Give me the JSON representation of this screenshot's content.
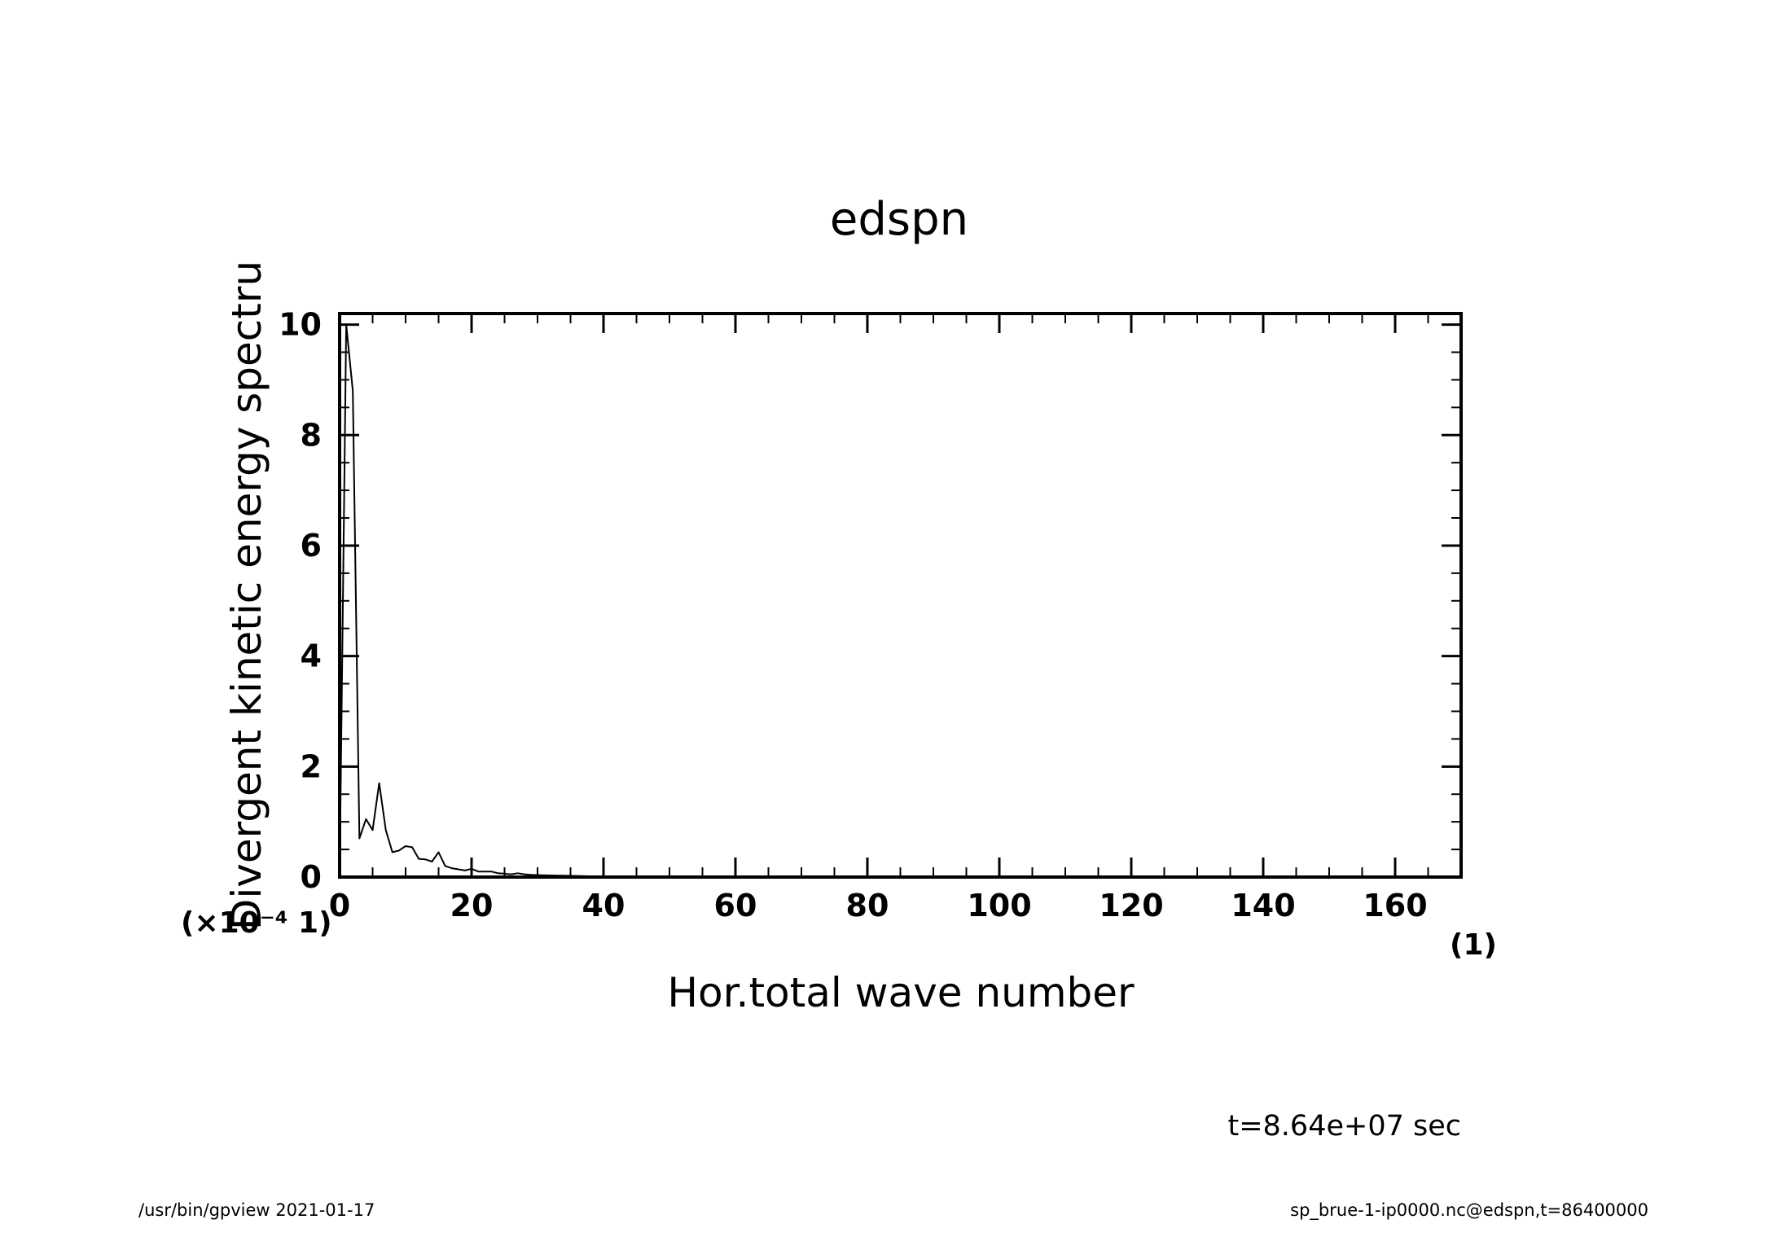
{
  "chart_data": {
    "type": "line",
    "title": "edspn",
    "xlabel": "Hor.total wave number",
    "ylabel": "Divergent kinetic energy spectru",
    "x_unit": "(1)",
    "y_scale_label": "(×10⁻⁴ 1)",
    "xlim": [
      0,
      170
    ],
    "ylim": [
      0,
      10.2
    ],
    "x_ticks": [
      0,
      20,
      40,
      60,
      80,
      100,
      120,
      140,
      160
    ],
    "x_tick_labels": [
      "0",
      "20",
      "40",
      "60",
      "80",
      "100",
      "120",
      "140",
      "160"
    ],
    "x_minor_step": 5,
    "y_ticks": [
      0,
      2,
      4,
      6,
      8,
      10
    ],
    "y_tick_labels": [
      "0",
      "2",
      "4",
      "6",
      "8",
      "10"
    ],
    "y_minor_step": 0.5,
    "grid": false,
    "series": [
      {
        "name": "",
        "x": [
          0,
          1,
          2,
          3,
          4,
          5,
          6,
          7,
          8,
          9,
          10,
          11,
          12,
          13,
          14,
          15,
          16,
          17,
          18,
          19,
          20,
          21,
          22,
          23,
          24,
          25,
          26,
          27,
          28,
          29,
          30,
          32,
          34,
          36,
          38,
          40,
          45,
          50,
          60,
          80,
          100,
          120,
          140,
          160,
          170
        ],
        "y": [
          0,
          10,
          8.8,
          0.7,
          1.05,
          0.85,
          1.7,
          0.85,
          0.45,
          0.48,
          0.56,
          0.54,
          0.33,
          0.32,
          0.28,
          0.45,
          0.2,
          0.16,
          0.14,
          0.12,
          0.15,
          0.1,
          0.1,
          0.1,
          0.07,
          0.06,
          0.05,
          0.07,
          0.05,
          0.04,
          0.035,
          0.03,
          0.025,
          0.02,
          0.015,
          0.01,
          0.008,
          0.005,
          0.003,
          0.001,
          0.0005,
          0.0003,
          0.0002,
          0.0001,
          0
        ]
      }
    ]
  },
  "time_label": "t=8.64e+07 sec",
  "footer": {
    "left": "/usr/bin/gpview  2021-01-17",
    "right": "sp_brue-1-ip0000.nc@edspn,t=86400000"
  }
}
